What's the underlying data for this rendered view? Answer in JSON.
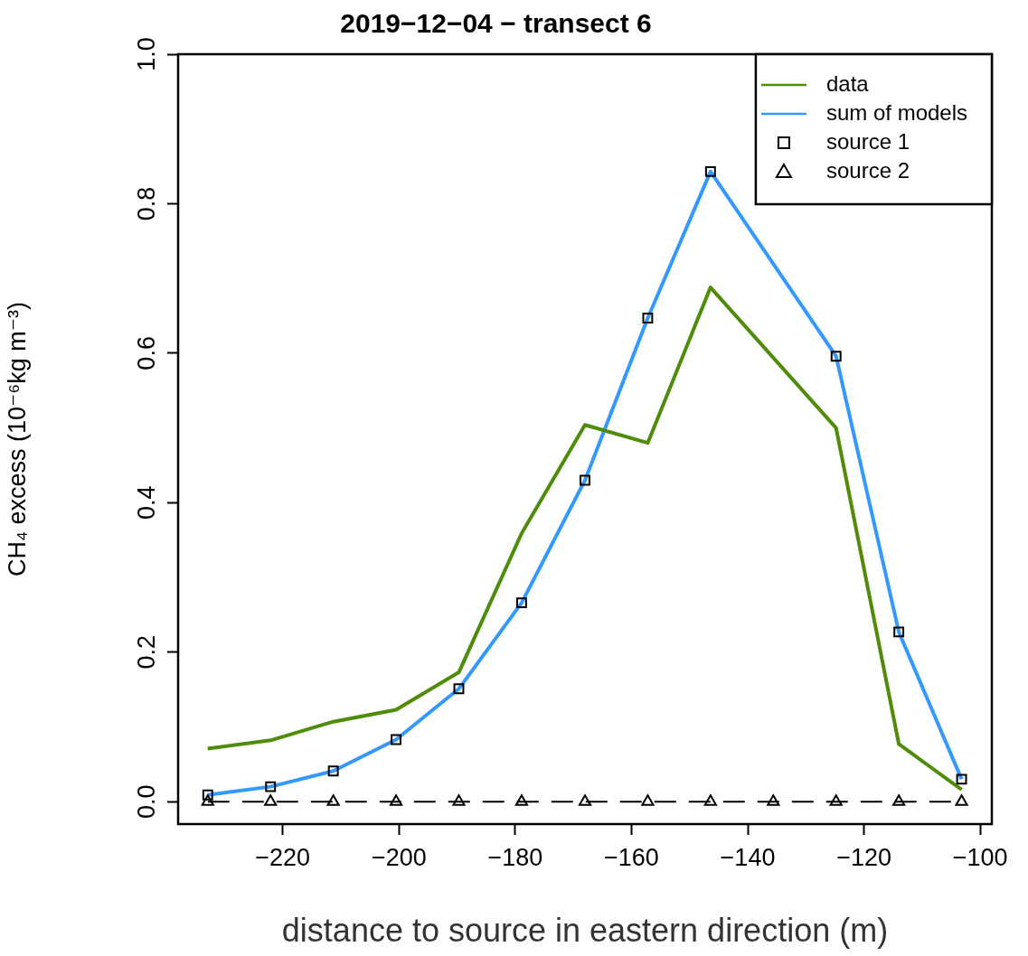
{
  "chart_data": {
    "type": "line",
    "title": "2019−12−04 − transect 6",
    "xlabel": "distance to source in eastern direction (m)",
    "ylabel": "CH₄ excess (10⁻⁶kg m⁻³)",
    "x": [
      -232.9,
      -222.1,
      -211.3,
      -200.5,
      -189.7,
      -178.9,
      -168.0,
      -157.2,
      -146.4,
      -135.6,
      -124.8,
      -114.0,
      -103.2
    ],
    "series": [
      {
        "name": "data",
        "type": "line",
        "color": "#4e8c0a",
        "marker": "none",
        "line_style": "solid",
        "values": [
          0.071,
          0.082,
          0.107,
          0.123,
          0.173,
          0.359,
          0.504,
          0.48,
          0.688,
          null,
          0.5,
          0.077,
          0.016
        ]
      },
      {
        "name": "sum of models",
        "type": "line",
        "color": "#3399ff",
        "marker": "none",
        "line_style": "solid",
        "values": [
          0.009,
          0.02,
          0.041,
          0.083,
          0.151,
          0.266,
          0.43,
          0.647,
          0.843,
          null,
          0.596,
          0.227,
          0.03
        ]
      },
      {
        "name": "source 1",
        "type": "scatter",
        "color": "#000000",
        "marker": "square",
        "values": [
          0.009,
          0.02,
          0.041,
          0.083,
          0.151,
          0.266,
          0.43,
          0.647,
          0.843,
          null,
          0.596,
          0.227,
          0.03
        ]
      },
      {
        "name": "source 2",
        "type": "line",
        "color": "#000000",
        "marker": "triangle",
        "line_style": "dashed",
        "values": [
          0,
          0,
          0,
          0,
          0,
          0,
          0,
          0,
          0,
          0,
          0,
          0,
          0
        ]
      }
    ],
    "xlim": [
      -238,
      -98
    ],
    "ylim": [
      -0.03,
      1.0
    ],
    "xticks": [
      {
        "value": -220,
        "label": "−220"
      },
      {
        "value": -200,
        "label": "−200"
      },
      {
        "value": -180,
        "label": "−180"
      },
      {
        "value": -160,
        "label": "−160"
      },
      {
        "value": -140,
        "label": "−140"
      },
      {
        "value": -120,
        "label": "−120"
      },
      {
        "value": -100,
        "label": "−100"
      }
    ],
    "yticks": [
      {
        "value": 0,
        "label": "0.0"
      },
      {
        "value": 0.2,
        "label": "0.2"
      },
      {
        "value": 0.4,
        "label": "0.4"
      },
      {
        "value": 0.6,
        "label": "0.6"
      },
      {
        "value": 0.8,
        "label": "0.8"
      },
      {
        "value": 1.0,
        "label": "1.0"
      }
    ],
    "grid": false,
    "legend": "top right"
  }
}
